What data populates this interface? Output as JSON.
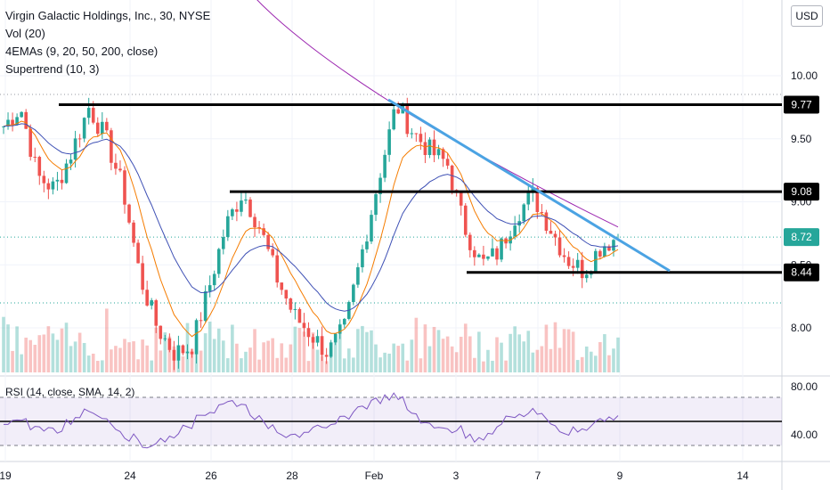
{
  "legend": {
    "symbol": "Virgin Galactic Holdings, Inc., 30, NYSE",
    "vol": "Vol (20)",
    "emas": "4EMAs (9, 20, 50, 200, close)",
    "supertrend": "Supertrend (10, 3)",
    "rsi": "RSI (14, close, SMA, 14, 2)"
  },
  "currency_button": "USD",
  "colors": {
    "up": "#26a69a",
    "down": "#ef5350",
    "trendline": "#4ba3e3",
    "level": "#000000",
    "ema_short": "#f57c00",
    "ema_mid": "#3f51b5",
    "ema_long": "#9c27b0",
    "rsi": "#7e57c2",
    "current_price": "#26a69a"
  },
  "chart_data": {
    "type": "candlestick",
    "price_axis": {
      "range": [
        7.7,
        10.5
      ],
      "ticks": [
        8.0,
        8.5,
        9.0,
        9.5,
        10.0
      ],
      "tick_labels": [
        "8.00",
        "8.50",
        "9.00",
        "9.50",
        "10.00"
      ]
    },
    "time_axis": {
      "labels": [
        "19",
        "24",
        "26",
        "28",
        "Feb",
        "3",
        "7",
        "9",
        "14"
      ]
    },
    "close_path": [
      9.6,
      9.75,
      9.2,
      9.1,
      9.4,
      9.75,
      9.5,
      9.1,
      8.4,
      8.0,
      7.8,
      7.85,
      8.3,
      8.8,
      9.08,
      8.8,
      8.4,
      8.1,
      7.95,
      7.8,
      8.0,
      8.6,
      9.2,
      9.77,
      9.55,
      9.4,
      9.3,
      8.8,
      8.5,
      8.6,
      8.9,
      9.05,
      8.8,
      8.55,
      8.45,
      8.65,
      8.72
    ],
    "horizontal_levels": [
      {
        "label": "9.77",
        "value": 9.77
      },
      {
        "label": "9.08",
        "value": 9.08
      },
      {
        "label": "8.44",
        "value": 8.44
      }
    ],
    "current_price": {
      "label": "8.72",
      "value": 8.72
    },
    "trendline": {
      "from": {
        "value": 9.77
      },
      "to": {
        "value": 8.44
      }
    },
    "rsi": {
      "levels": [
        80.0,
        40.0
      ],
      "level_labels": [
        "80.00",
        "40.00"
      ],
      "band": [
        30,
        70
      ]
    }
  }
}
